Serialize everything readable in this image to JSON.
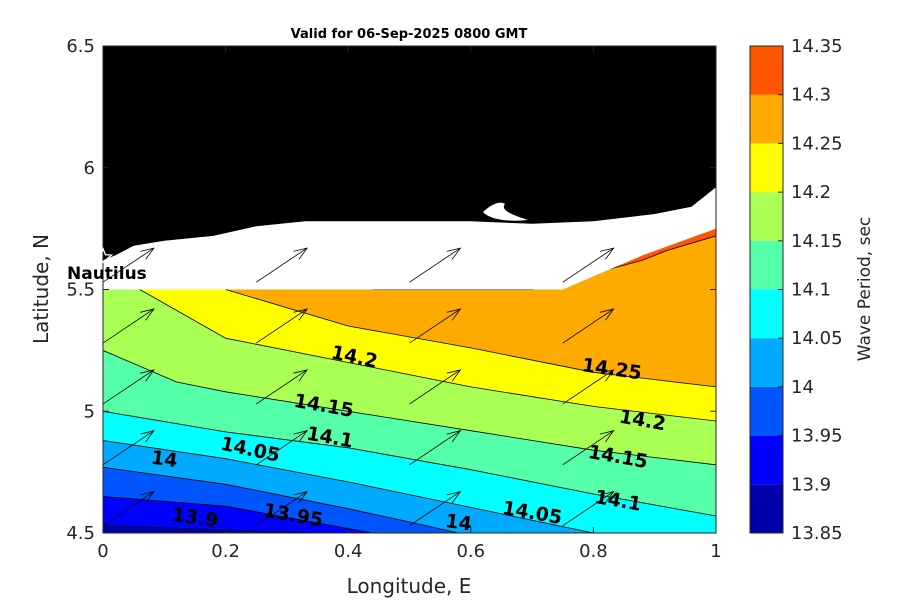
{
  "chart_data": {
    "type": "contour",
    "title": "Valid for 06-Sep-2025 0800 GMT",
    "xlabel": "Longitude, E",
    "ylabel": "Latitude, N",
    "xlim": [
      0,
      1
    ],
    "ylim": [
      4.5,
      6.5
    ],
    "xticks": [
      {
        "value": 0,
        "label": "0"
      },
      {
        "value": 0.2,
        "label": "0.2"
      },
      {
        "value": 0.4,
        "label": "0.4"
      },
      {
        "value": 0.6,
        "label": "0.6"
      },
      {
        "value": 0.8,
        "label": "0.8"
      },
      {
        "value": 1,
        "label": "1"
      }
    ],
    "yticks": [
      {
        "value": 4.5,
        "label": "4.5"
      },
      {
        "value": 5,
        "label": "5"
      },
      {
        "value": 5.5,
        "label": "5.5"
      },
      {
        "value": 6,
        "label": "6"
      },
      {
        "value": 6.5,
        "label": "6.5"
      }
    ],
    "colorbar": {
      "label": "Wave Period, sec",
      "levels": [
        13.85,
        13.9,
        13.95,
        14,
        14.05,
        14.1,
        14.15,
        14.2,
        14.25,
        14.3,
        14.35
      ],
      "tick_labels": [
        "13.85",
        "13.9",
        "13.95",
        "14",
        "14.05",
        "14.1",
        "14.15",
        "14.2",
        "14.25",
        "14.3",
        "14.35"
      ],
      "colors": [
        "#0000aa",
        "#0000ff",
        "#0055ff",
        "#00aaff",
        "#00ffff",
        "#55ffaa",
        "#aaff55",
        "#ffff00",
        "#ffaa00",
        "#ff5500"
      ]
    },
    "contours": [
      {
        "level": 13.9,
        "points": [
          [
            0,
            4.53
          ],
          [
            0.35,
            4.5
          ]
        ]
      },
      {
        "level": 13.95,
        "points": [
          [
            0,
            4.65
          ],
          [
            0.2,
            4.61
          ],
          [
            0.44,
            4.5
          ]
        ]
      },
      {
        "level": 14,
        "points": [
          [
            0,
            4.77
          ],
          [
            0.2,
            4.7
          ],
          [
            0.4,
            4.6
          ],
          [
            0.5,
            4.545
          ],
          [
            0.58,
            4.5
          ]
        ]
      },
      {
        "level": 14.05,
        "points": [
          [
            0,
            4.88
          ],
          [
            0.2,
            4.805
          ],
          [
            0.4,
            4.71
          ],
          [
            0.6,
            4.605
          ],
          [
            0.8,
            4.5
          ]
        ]
      },
      {
        "level": 14.1,
        "points": [
          [
            0,
            5.0
          ],
          [
            0.2,
            4.915
          ],
          [
            0.4,
            4.85
          ],
          [
            0.6,
            4.76
          ],
          [
            0.8,
            4.66
          ],
          [
            1,
            4.57
          ]
        ]
      },
      {
        "level": 14.15,
        "points": [
          [
            0,
            5.25
          ],
          [
            0.12,
            5.12
          ],
          [
            0.2,
            5.08
          ],
          [
            0.4,
            5.0
          ],
          [
            0.6,
            4.92
          ],
          [
            0.8,
            4.84
          ],
          [
            1,
            4.78
          ]
        ]
      },
      {
        "level": 14.2,
        "points": [
          [
            0.06,
            5.5
          ],
          [
            0.2,
            5.3
          ],
          [
            0.4,
            5.2
          ],
          [
            0.6,
            5.1
          ],
          [
            0.8,
            5.02
          ],
          [
            1,
            4.96
          ]
        ]
      },
      {
        "level": 14.25,
        "points": [
          [
            0.2,
            5.5
          ],
          [
            0.4,
            5.35
          ],
          [
            0.6,
            5.26
          ],
          [
            0.8,
            5.16
          ],
          [
            1,
            5.1
          ]
        ]
      },
      {
        "level": 14.3,
        "points": [
          [
            0.44,
            5.5
          ],
          [
            0.7,
            5.5
          ],
          [
            0.79,
            5.56
          ],
          [
            0.88,
            5.62
          ],
          [
            0.92,
            5.66
          ],
          [
            1,
            5.72
          ]
        ]
      }
    ],
    "contour_labels": [
      {
        "text": "13.9",
        "x": 0.15,
        "y": 4.56,
        "angle": 8
      },
      {
        "text": "13.95",
        "x": 0.31,
        "y": 4.57,
        "angle": 10
      },
      {
        "text": "14",
        "x": 0.1,
        "y": 4.8,
        "angle": 8
      },
      {
        "text": "14",
        "x": 0.58,
        "y": 4.54,
        "angle": 8
      },
      {
        "text": "14.05",
        "x": 0.24,
        "y": 4.84,
        "angle": 12
      },
      {
        "text": "14.05",
        "x": 0.7,
        "y": 4.58,
        "angle": 10
      },
      {
        "text": "14.1",
        "x": 0.37,
        "y": 4.89,
        "angle": 10
      },
      {
        "text": "14.1",
        "x": 0.84,
        "y": 4.63,
        "angle": 10
      },
      {
        "text": "14.15",
        "x": 0.36,
        "y": 5.02,
        "angle": 10
      },
      {
        "text": "14.15",
        "x": 0.84,
        "y": 4.81,
        "angle": 10
      },
      {
        "text": "14.2",
        "x": 0.41,
        "y": 5.22,
        "angle": 12
      },
      {
        "text": "14.2",
        "x": 0.88,
        "y": 4.96,
        "angle": 10
      },
      {
        "text": "14.25",
        "x": 0.83,
        "y": 5.17,
        "angle": 8
      }
    ],
    "vectors": {
      "xs": [
        0,
        0.25,
        0.5,
        0.75
      ],
      "ys": [
        4.53,
        4.78,
        5.03,
        5.28,
        5.53
      ],
      "dx": 0.083,
      "dy": 0.14
    },
    "coastline": [
      [
        0,
        5.62
      ],
      [
        0.02,
        5.64
      ],
      [
        0.05,
        5.68
      ],
      [
        0.1,
        5.7
      ],
      [
        0.18,
        5.72
      ],
      [
        0.25,
        5.76
      ],
      [
        0.33,
        5.78
      ],
      [
        0.45,
        5.78
      ],
      [
        0.6,
        5.78
      ],
      [
        0.7,
        5.77
      ],
      [
        0.8,
        5.78
      ],
      [
        0.9,
        5.81
      ],
      [
        0.96,
        5.84
      ],
      [
        0.99,
        5.9
      ],
      [
        1,
        5.92
      ]
    ],
    "ocean_top": [
      [
        0,
        5.5
      ],
      [
        0.75,
        5.5
      ],
      [
        0.88,
        5.64
      ],
      [
        1,
        5.75
      ]
    ],
    "station": {
      "name": "Nautilus",
      "x": 0,
      "y": 5.63
    }
  }
}
